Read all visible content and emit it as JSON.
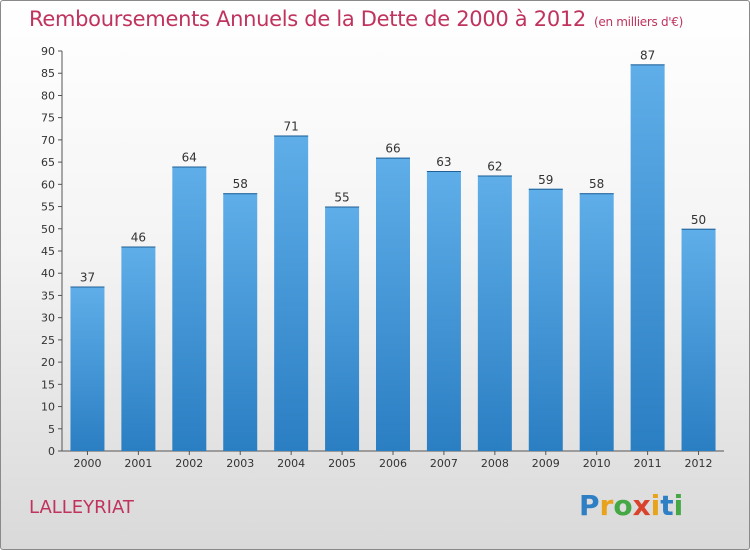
{
  "header": {
    "title": "Remboursements Annuels de la Dette de 2000 à 2012",
    "subtitle": "(en milliers d'€)"
  },
  "footer": {
    "commune": "LALLEYRIAT",
    "logo": [
      "P",
      "r",
      "o",
      "x",
      "i",
      "t",
      "i"
    ]
  },
  "colors": {
    "title": "#c0335e",
    "bar_top": "#5faee9",
    "bar_bottom": "#2a7ec2",
    "logo": [
      "#2f7fc4",
      "#e8a21c",
      "#45a845",
      "#d9432b",
      "#e8a21c",
      "#2f7fc4",
      "#45a845"
    ]
  },
  "chart_data": {
    "type": "bar",
    "categories": [
      "2000",
      "2001",
      "2002",
      "2003",
      "2004",
      "2005",
      "2006",
      "2007",
      "2008",
      "2009",
      "2010",
      "2011",
      "2012"
    ],
    "values": [
      37,
      46,
      64,
      58,
      71,
      55,
      66,
      63,
      62,
      59,
      58,
      87,
      50
    ],
    "ylim": [
      0,
      90
    ],
    "yticks": [
      0,
      5,
      10,
      15,
      20,
      25,
      30,
      35,
      40,
      45,
      50,
      55,
      60,
      65,
      70,
      75,
      80,
      85,
      90
    ],
    "grid": false,
    "data_labels": true
  }
}
